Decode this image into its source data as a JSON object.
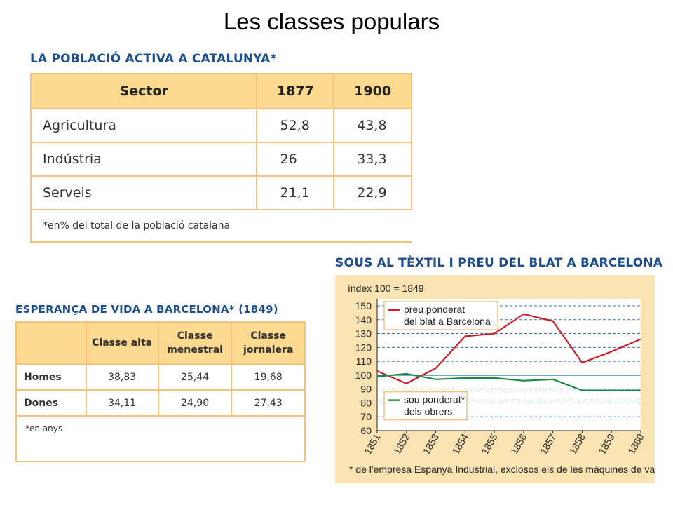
{
  "page_title": "Les classes populars",
  "table1": {
    "title": "LA POBLACIÓ ACTIVA A CATALUNYA*",
    "headers": [
      "Sector",
      "1877",
      "1900"
    ],
    "rows": [
      [
        "Agricultura",
        "52,8",
        "43,8"
      ],
      [
        "Indústria",
        "26",
        "33,3"
      ],
      [
        "Serveis",
        "21,1",
        "22,9"
      ]
    ],
    "footnote": "*en% del total de la població catalana"
  },
  "table2": {
    "title": "ESPERANÇA DE VIDA A BARCELONA* (1849)",
    "headers": [
      "",
      "Classe alta",
      "Classe menestral",
      "Classe jornalera"
    ],
    "rows": [
      [
        "Homes",
        "38,83",
        "25,44",
        "19,68"
      ],
      [
        "Dones",
        "34,11",
        "24,90",
        "27,43"
      ]
    ],
    "footnote": "*en anys"
  },
  "chart_data": {
    "type": "line",
    "title": "SOUS AL TÈXTIL I PREU DEL BLAT A BARCELONA",
    "subtitle": "índex 100 = 1849",
    "footnote": "* de l'empresa Espanya Industrial, exclosos els de les màquines de vapor",
    "x": [
      1851,
      1852,
      1853,
      1854,
      1855,
      1856,
      1857,
      1858,
      1859,
      1860
    ],
    "ylim": [
      60,
      150
    ],
    "yticks": [
      60,
      70,
      80,
      90,
      100,
      110,
      120,
      130,
      140,
      150
    ],
    "reference_line": 100,
    "grid": true,
    "series": [
      {
        "name": "preu ponderat del blat a Barcelona",
        "color": "#c8202c",
        "values": [
          103,
          94,
          105,
          128,
          130,
          144,
          139,
          109,
          117,
          126
        ]
      },
      {
        "name": "sou ponderat* dels obrers",
        "color": "#1e8a4a",
        "values": [
          99,
          101,
          97,
          98,
          98,
          96,
          97,
          89,
          89,
          89
        ]
      }
    ],
    "reference_color": "#3a6fa8",
    "legend": [
      {
        "lines": [
          "preu ponderat",
          "del blat a Barcelona"
        ],
        "position": "top-left"
      },
      {
        "lines": [
          "sou ponderat*",
          "dels obrers"
        ],
        "position": "bottom-left"
      }
    ]
  }
}
